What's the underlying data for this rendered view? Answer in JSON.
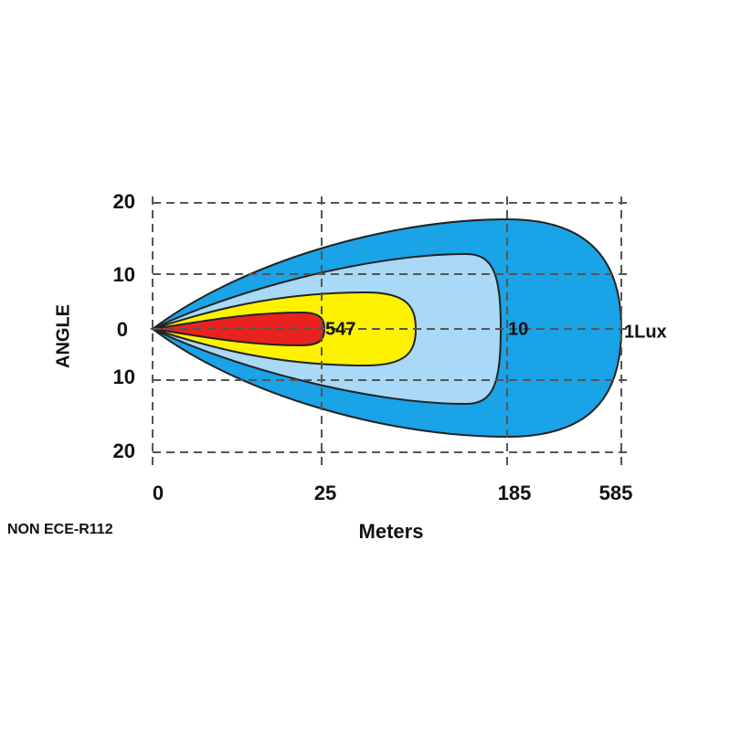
{
  "axes": {
    "y_label": "ANGLE",
    "x_label": "Meters",
    "y_tick_labels": [
      "20",
      "10",
      "0",
      "10",
      "20"
    ],
    "x_tick_labels": [
      "0",
      "25",
      "185",
      "585"
    ]
  },
  "zones": {
    "labels": [
      "547",
      "10",
      "1Lux"
    ]
  },
  "note": "NON ECE-R112"
}
